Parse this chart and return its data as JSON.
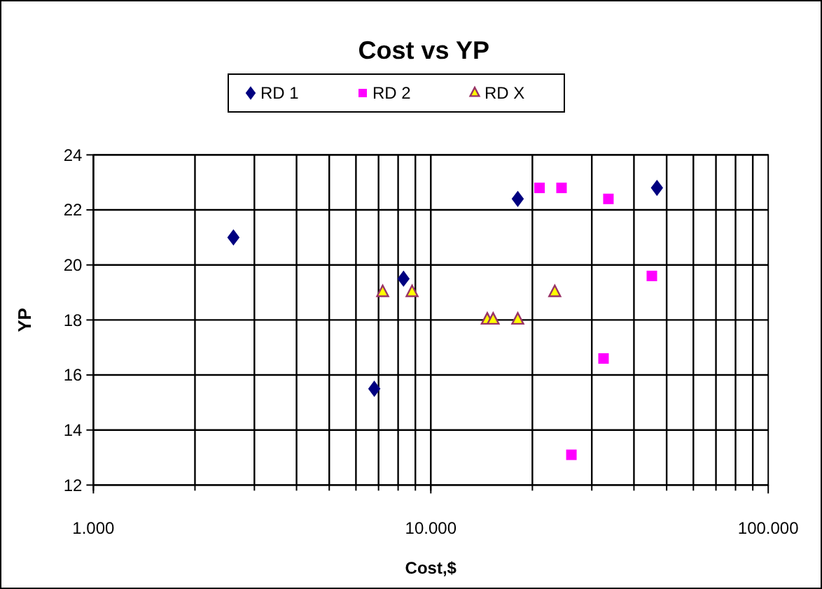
{
  "chart_data": {
    "type": "scatter",
    "title": "Cost vs YP",
    "xlabel": "Cost,$",
    "ylabel": "YP",
    "log": "x",
    "xlim": [
      1000,
      100000
    ],
    "xticks": [
      {
        "value": 1000,
        "label": "1.000"
      },
      {
        "value": 10000,
        "label": "10.000"
      },
      {
        "value": 100000,
        "label": "100.000"
      }
    ],
    "ylim": [
      12,
      24
    ],
    "yticks": [
      12,
      14,
      16,
      18,
      20,
      22,
      24
    ],
    "grid": true,
    "legend": "top",
    "series": [
      {
        "name": "RD 1",
        "color": "#000080",
        "marker": "diamond",
        "x": [
          2600,
          8300,
          6800,
          18100,
          46800
        ],
        "values": [
          21.0,
          19.5,
          15.5,
          22.4,
          22.8
        ]
      },
      {
        "name": "RD 2",
        "color": "#ff00ff",
        "marker": "square",
        "x": [
          21000,
          24400,
          33600,
          45200,
          32500,
          26100
        ],
        "values": [
          22.8,
          22.8,
          22.4,
          19.6,
          16.6,
          13.1
        ]
      },
      {
        "name": "RD X",
        "color": "#ffff00",
        "marker": "triangle",
        "x": [
          7200,
          8800,
          14700,
          15300,
          18100,
          23300
        ],
        "values": [
          19.0,
          19.0,
          18.0,
          18.0,
          18.0,
          19.0
        ]
      }
    ]
  }
}
